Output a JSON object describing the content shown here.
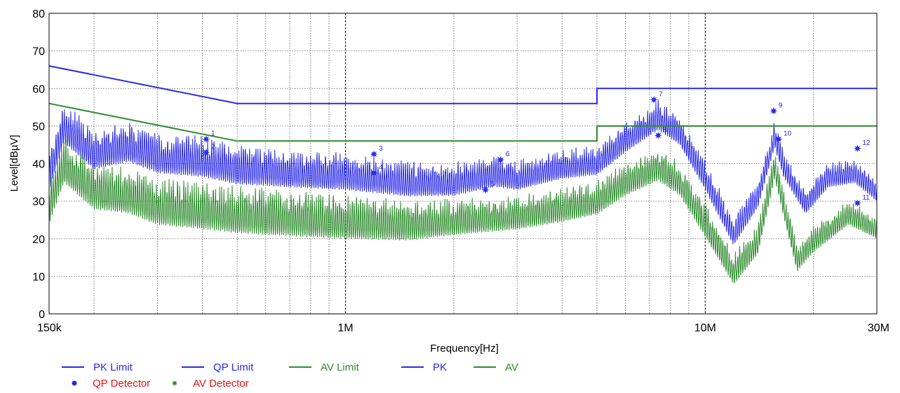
{
  "chart_data": {
    "type": "line",
    "xlabel": "Frequency[Hz]",
    "ylabel": "Level[dBµV]",
    "x_scale": "log",
    "xlim": [
      150000,
      30000000
    ],
    "ylim": [
      0,
      80
    ],
    "grid": true,
    "legend_placement": "bottom-left",
    "x_ticks": [
      {
        "value": 150000,
        "label": "150k"
      },
      {
        "value": 1000000,
        "label": "1M"
      },
      {
        "value": 10000000,
        "label": "10M"
      },
      {
        "value": 30000000,
        "label": "30M"
      }
    ],
    "y_ticks": [
      0,
      10,
      20,
      30,
      40,
      50,
      60,
      70,
      80
    ],
    "colors": {
      "blue": "#2a2ae8",
      "green": "#2e8b2e",
      "red": "#ee1111",
      "grid": "#555555"
    },
    "series": [
      {
        "name": "QP Limit",
        "color": "#2a2ae8",
        "points": [
          [
            150000,
            66
          ],
          [
            500000,
            56
          ],
          [
            5000000,
            56
          ],
          [
            5000000,
            60
          ],
          [
            30000000,
            60
          ]
        ]
      },
      {
        "name": "AV Limit",
        "color": "#2e8b2e",
        "points": [
          [
            150000,
            56
          ],
          [
            500000,
            46
          ],
          [
            5000000,
            46
          ],
          [
            5000000,
            50
          ],
          [
            30000000,
            50
          ]
        ]
      },
      {
        "name": "PK",
        "color": "#2a2ae8",
        "kind": "trace",
        "envelope": [
          [
            150000,
            38
          ],
          [
            165000,
            51
          ],
          [
            200000,
            44
          ],
          [
            250000,
            46
          ],
          [
            300000,
            43
          ],
          [
            400000,
            42
          ],
          [
            500000,
            40
          ],
          [
            700000,
            39
          ],
          [
            1000000,
            38
          ],
          [
            1500000,
            36
          ],
          [
            2000000,
            36
          ],
          [
            2600000,
            38
          ],
          [
            3000000,
            37
          ],
          [
            4000000,
            40
          ],
          [
            5000000,
            41
          ],
          [
            6000000,
            47
          ],
          [
            7400000,
            53
          ],
          [
            8500000,
            49
          ],
          [
            10000000,
            37
          ],
          [
            12000000,
            22
          ],
          [
            14000000,
            32
          ],
          [
            15600000,
            48
          ],
          [
            16500000,
            40
          ],
          [
            19000000,
            30
          ],
          [
            22000000,
            37
          ],
          [
            26000000,
            38
          ],
          [
            30000000,
            33
          ]
        ],
        "noise": [
          [
            150000,
            11
          ],
          [
            500000,
            11
          ],
          [
            1000000,
            10
          ],
          [
            2000000,
            9
          ],
          [
            3000000,
            8
          ],
          [
            5000000,
            8
          ],
          [
            10000000,
            8
          ],
          [
            30000000,
            6
          ]
        ]
      },
      {
        "name": "AV",
        "color": "#2e8b2e",
        "kind": "trace",
        "envelope": [
          [
            150000,
            30
          ],
          [
            165000,
            41
          ],
          [
            200000,
            34
          ],
          [
            250000,
            33
          ],
          [
            300000,
            30
          ],
          [
            400000,
            29
          ],
          [
            500000,
            28
          ],
          [
            700000,
            27
          ],
          [
            1000000,
            26
          ],
          [
            1500000,
            25
          ],
          [
            2000000,
            26
          ],
          [
            3000000,
            27
          ],
          [
            4000000,
            29
          ],
          [
            5000000,
            31
          ],
          [
            6000000,
            36
          ],
          [
            7400000,
            40
          ],
          [
            8500000,
            36
          ],
          [
            10000000,
            25
          ],
          [
            12000000,
            12
          ],
          [
            14000000,
            20
          ],
          [
            15600000,
            40
          ],
          [
            16500000,
            30
          ],
          [
            18000000,
            15
          ],
          [
            20000000,
            20
          ],
          [
            25000000,
            27
          ],
          [
            30000000,
            23
          ]
        ],
        "noise": [
          [
            150000,
            12
          ],
          [
            500000,
            13
          ],
          [
            1000000,
            12
          ],
          [
            2000000,
            10
          ],
          [
            3000000,
            9
          ],
          [
            5000000,
            9
          ],
          [
            10000000,
            9
          ],
          [
            30000000,
            6
          ]
        ]
      }
    ],
    "markers": [
      {
        "label": "1",
        "x": 410000,
        "qp": 46.5
      },
      {
        "label": "2",
        "x": 410000,
        "av": 43
      },
      {
        "label": "3",
        "x": 1200000,
        "qp": 42.5
      },
      {
        "label": "4",
        "x": 1200000,
        "av": 37.5
      },
      {
        "label": "5",
        "x": 2450000,
        "av": 33
      },
      {
        "label": "6",
        "x": 2700000,
        "qp": 41
      },
      {
        "label": "7",
        "x": 7200000,
        "qp": 57
      },
      {
        "label": "8",
        "x": 7400000,
        "av": 47.5
      },
      {
        "label": "9",
        "x": 15500000,
        "qp": 54
      },
      {
        "label": "10",
        "x": 16000000,
        "av": 46.5
      },
      {
        "label": "11",
        "x": 26500000,
        "av": 29.5
      },
      {
        "label": "12",
        "x": 26500000,
        "qp": 44
      }
    ],
    "legend": [
      {
        "label": "PK Limit",
        "type": "line",
        "color": "#2a2ae8",
        "text_color": "#2a2ae8"
      },
      {
        "label": "QP Limit",
        "type": "line",
        "color": "#2a2ae8",
        "text_color": "#2a2ae8"
      },
      {
        "label": "AV Limit",
        "type": "line",
        "color": "#2e8b2e",
        "text_color": "#2e8b2e"
      },
      {
        "label": "PK",
        "type": "line",
        "color": "#2a2ae8",
        "text_color": "#2a2ae8"
      },
      {
        "label": "AV",
        "type": "line",
        "color": "#2e8b2e",
        "text_color": "#2e8b2e"
      },
      {
        "label": "QP Detector",
        "type": "dot",
        "color": "#2a2ae8",
        "text_color": "#ee1111"
      },
      {
        "label": "AV Detector",
        "type": "star",
        "color": "#2e8b2e",
        "text_color": "#ee1111"
      }
    ]
  }
}
